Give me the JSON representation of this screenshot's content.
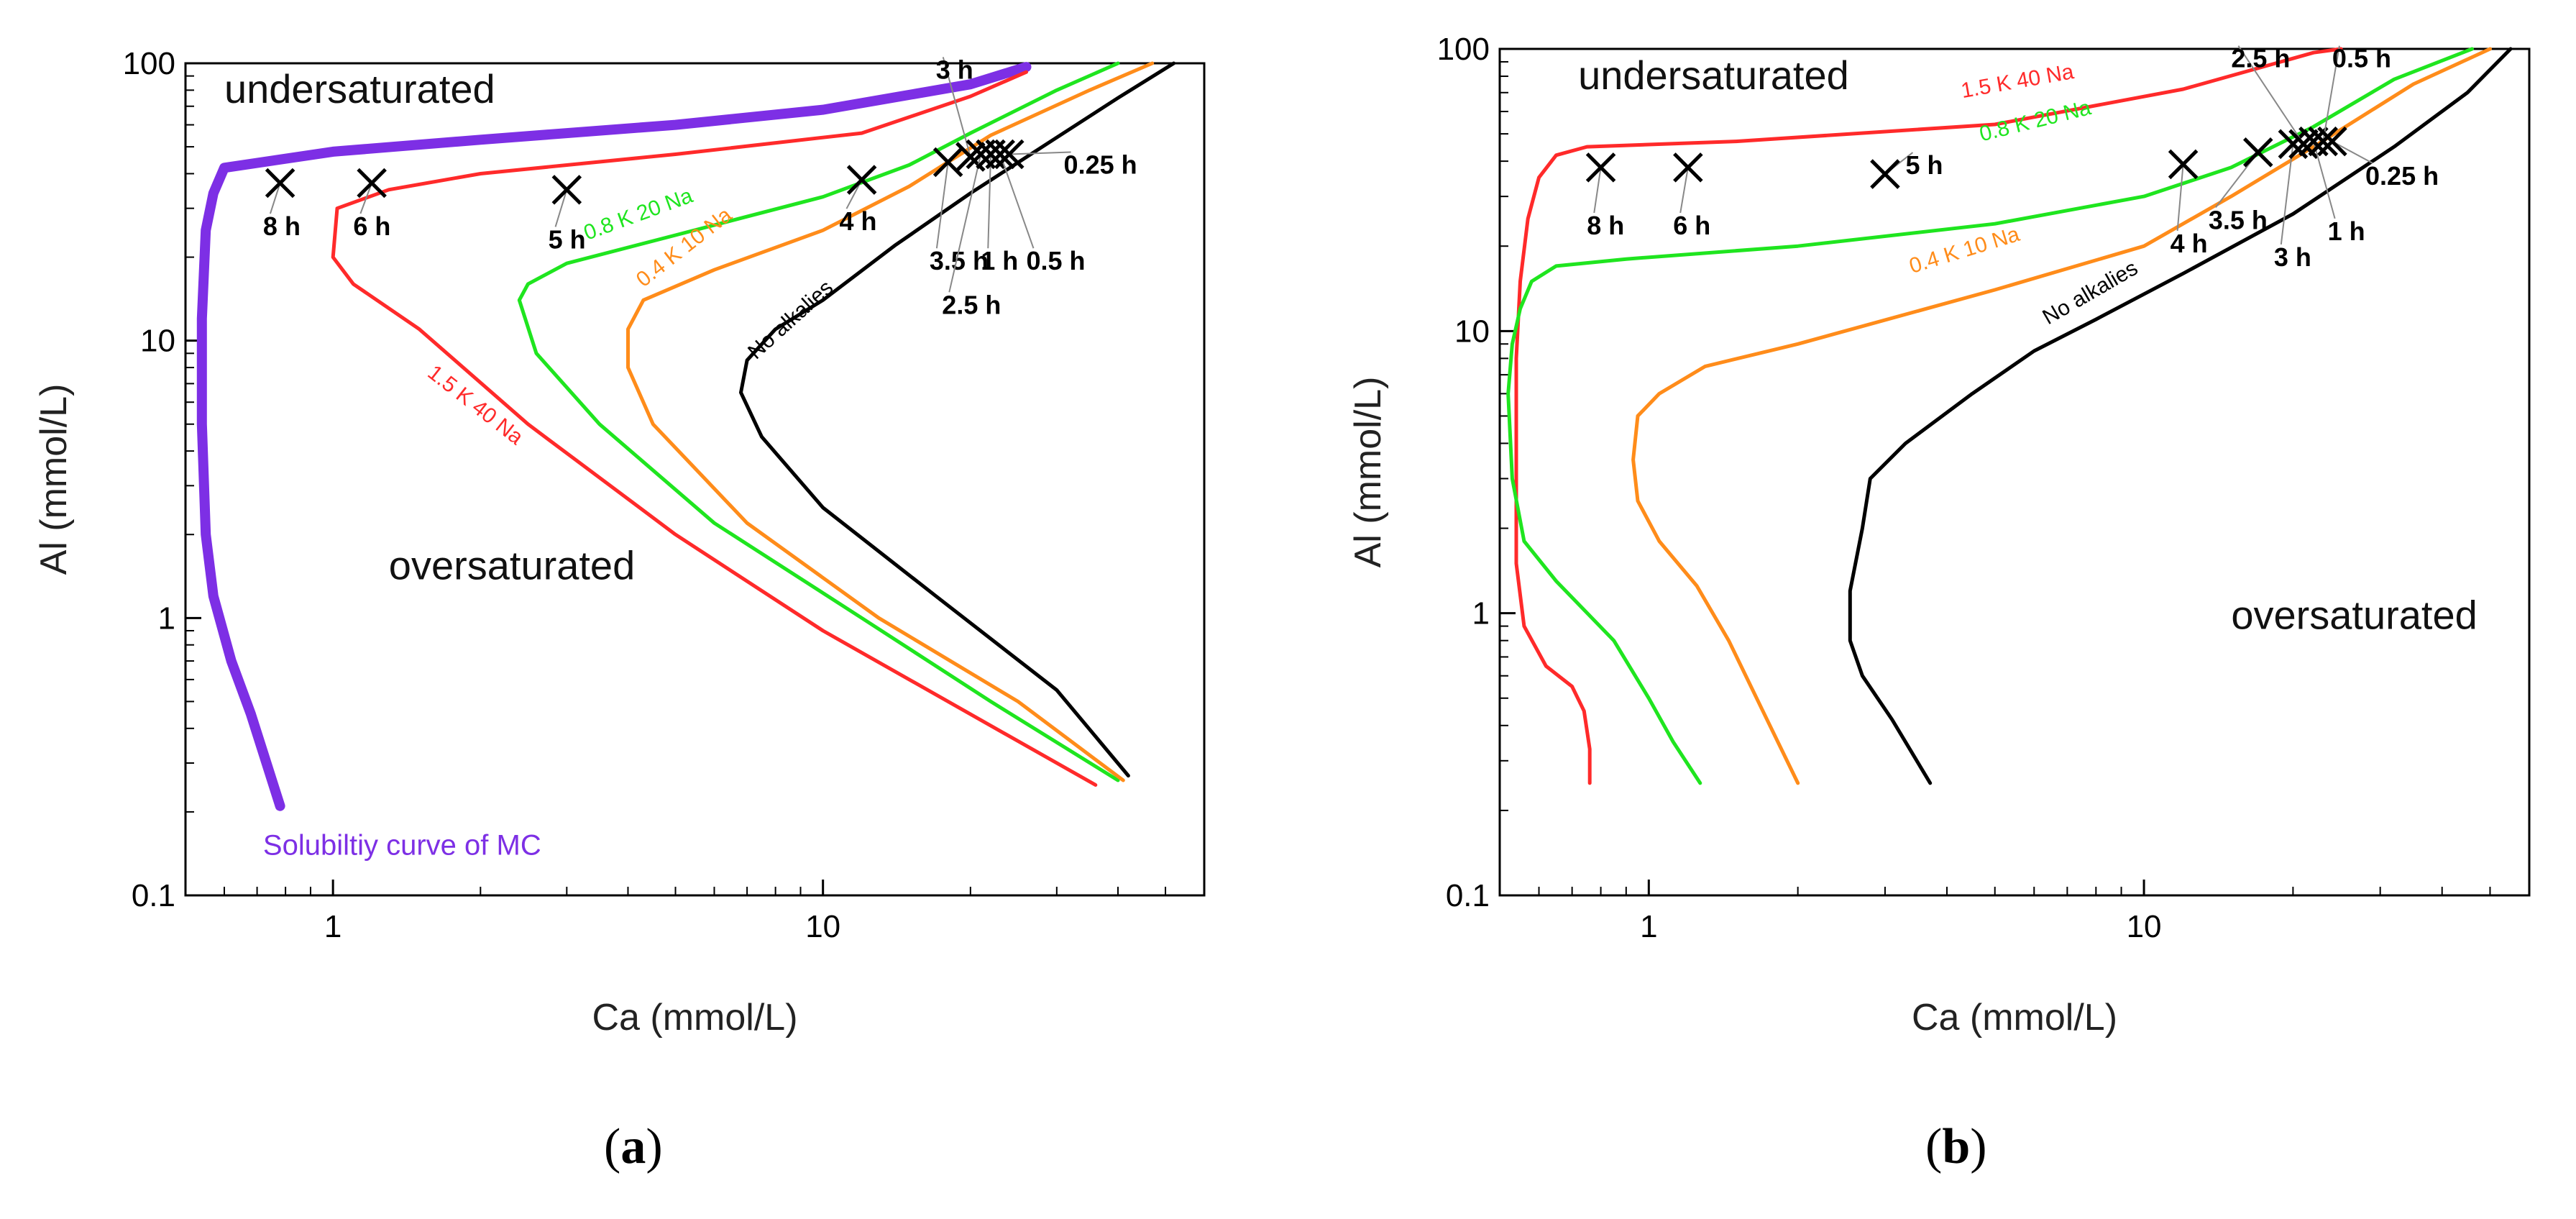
{
  "chart_data": [
    {
      "id": "a",
      "type": "line",
      "panel_label": "a",
      "xlabel": "Ca (mmol/L)",
      "ylabel": "Al (mmol/L)",
      "xscale": "log",
      "yscale": "log",
      "xlim": [
        0.5,
        60
      ],
      "ylim": [
        0.1,
        100
      ],
      "x_ticks": [
        {
          "v": 1,
          "label": "1"
        },
        {
          "v": 10,
          "label": "10"
        }
      ],
      "y_ticks": [
        {
          "v": 0.1,
          "label": "0.1"
        },
        {
          "v": 1,
          "label": "1"
        },
        {
          "v": 10,
          "label": "10"
        },
        {
          "v": 100,
          "label": "100"
        }
      ],
      "region_labels": [
        {
          "text": "undersaturated",
          "x": 0.6,
          "y": 72
        },
        {
          "text": "oversaturated",
          "x": 1.3,
          "y": 1.38
        }
      ],
      "series": [
        {
          "name": "Solubiltiy curve of MC",
          "color": "#7d2fe5",
          "width": 14,
          "points": [
            [
              0.78,
              0.21
            ],
            [
              0.68,
              0.45
            ],
            [
              0.62,
              0.7
            ],
            [
              0.57,
              1.2
            ],
            [
              0.55,
              2
            ],
            [
              0.54,
              5
            ],
            [
              0.54,
              12
            ],
            [
              0.55,
              25
            ],
            [
              0.57,
              34
            ],
            [
              0.6,
              42
            ],
            [
              1.0,
              48
            ],
            [
              2,
              53
            ],
            [
              5,
              60
            ],
            [
              10,
              68
            ],
            [
              20,
              84
            ],
            [
              26,
              97
            ]
          ]
        },
        {
          "name": "1.5 K 40 Na",
          "color": "#ff2a2a",
          "width": 5,
          "points": [
            [
              36,
              0.25
            ],
            [
              20,
              0.45
            ],
            [
              10,
              0.9
            ],
            [
              5,
              2
            ],
            [
              2.5,
              5
            ],
            [
              1.5,
              11
            ],
            [
              1.1,
              16
            ],
            [
              1.0,
              20
            ],
            [
              1.02,
              30
            ],
            [
              1.3,
              35
            ],
            [
              2,
              40
            ],
            [
              5,
              47
            ],
            [
              12,
              56
            ],
            [
              20,
              76
            ],
            [
              26,
              93
            ]
          ]
        },
        {
          "name": "0.8 K 20 Na",
          "color": "#1fe51f",
          "width": 5,
          "points": [
            [
              40,
              0.26
            ],
            [
              22,
              0.5
            ],
            [
              12,
              1
            ],
            [
              6,
              2.2
            ],
            [
              3.5,
              5
            ],
            [
              2.6,
              9
            ],
            [
              2.4,
              14
            ],
            [
              2.5,
              16
            ],
            [
              3,
              19
            ],
            [
              5,
              24
            ],
            [
              10,
              33
            ],
            [
              15,
              43
            ],
            [
              20,
              56
            ],
            [
              30,
              80
            ],
            [
              40,
              100
            ]
          ]
        },
        {
          "name": "0.4 K 10 Na",
          "color": "#ff8c1a",
          "width": 5,
          "points": [
            [
              41,
              0.26
            ],
            [
              25,
              0.5
            ],
            [
              13,
              1
            ],
            [
              7,
              2.2
            ],
            [
              4.5,
              5
            ],
            [
              4.0,
              8
            ],
            [
              4.0,
              11
            ],
            [
              4.3,
              14
            ],
            [
              6,
              18
            ],
            [
              10,
              25
            ],
            [
              15,
              36
            ],
            [
              22,
              55
            ],
            [
              35,
              80
            ],
            [
              47,
              100
            ]
          ]
        },
        {
          "name": "No alkalies",
          "color": "#000000",
          "width": 5,
          "points": [
            [
              42,
              0.27
            ],
            [
              30,
              0.55
            ],
            [
              17,
              1.2
            ],
            [
              10,
              2.5
            ],
            [
              7.5,
              4.5
            ],
            [
              6.8,
              6.5
            ],
            [
              7,
              8.5
            ],
            [
              8,
              11
            ],
            [
              10,
              14
            ],
            [
              14,
              22
            ],
            [
              20,
              34
            ],
            [
              30,
              54
            ],
            [
              40,
              75
            ],
            [
              52,
              100
            ]
          ]
        }
      ],
      "series_labels": [
        {
          "series": "1.5 K 40 Na",
          "text": "1.5 K 40 Na",
          "x": 1.55,
          "y": 7.5,
          "rotate": 38
        },
        {
          "series": "0.8 K 20 Na",
          "text": "0.8 K 20 Na",
          "x": 3.3,
          "y": 23,
          "rotate": -20
        },
        {
          "series": "0.4 K 10 Na",
          "text": "0.4 K 10 Na",
          "x": 4.3,
          "y": 15.5,
          "rotate": -38
        },
        {
          "series": "No alkalies",
          "text": "No alkalies",
          "x": 7.3,
          "y": 8.5,
          "rotate": -42
        },
        {
          "series": "Solubiltiy curve of MC",
          "text": "Solubiltiy curve of MC",
          "x": 0.72,
          "y": 0.14,
          "rotate": 0
        }
      ],
      "sample_points": [
        {
          "label": "8 h",
          "x": 0.78,
          "y": 37,
          "lx": 0.72,
          "ly": 24
        },
        {
          "label": "6 h",
          "x": 1.2,
          "y": 37,
          "lx": 1.1,
          "ly": 24
        },
        {
          "label": "5 h",
          "x": 3.0,
          "y": 35,
          "lx": 2.75,
          "ly": 21.5
        },
        {
          "label": "4 h",
          "x": 12,
          "y": 38,
          "lx": 10.8,
          "ly": 25
        },
        {
          "label": "3.5 h",
          "x": 18,
          "y": 44,
          "lx": 16.5,
          "ly": 18
        },
        {
          "label": "3 h",
          "x": 20,
          "y": 46,
          "lx": 17,
          "ly": 88
        },
        {
          "label": "2.5 h",
          "x": 21,
          "y": 47,
          "lx": 17.5,
          "ly": 12.5
        },
        {
          "label": "1 h",
          "x": 22,
          "y": 47,
          "lx": 21,
          "ly": 18
        },
        {
          "label": "0.5 h",
          "x": 23,
          "y": 47,
          "lx": 26,
          "ly": 18
        },
        {
          "label": "0.25 h",
          "x": 24,
          "y": 47,
          "lx": 31,
          "ly": 40
        }
      ]
    },
    {
      "id": "b",
      "type": "line",
      "panel_label": "b",
      "xlabel": "Ca (mmol/L)",
      "ylabel": "Al (mmol/L)",
      "xscale": "log",
      "yscale": "log",
      "xlim": [
        0.5,
        60
      ],
      "ylim": [
        0.1,
        100
      ],
      "x_ticks": [
        {
          "v": 1,
          "label": "1"
        },
        {
          "v": 10,
          "label": "10"
        }
      ],
      "y_ticks": [
        {
          "v": 0.1,
          "label": "0.1"
        },
        {
          "v": 1,
          "label": "1"
        },
        {
          "v": 10,
          "label": "10"
        },
        {
          "v": 100,
          "label": "100"
        }
      ],
      "region_labels": [
        {
          "text": "undersaturated",
          "x": 0.72,
          "y": 72
        },
        {
          "text": "oversaturated",
          "x": 15,
          "y": 0.88
        }
      ],
      "series": [
        {
          "name": "1.5 K 40 Na",
          "color": "#ff2a2a",
          "width": 5,
          "points": [
            [
              0.76,
              0.25
            ],
            [
              0.76,
              0.33
            ],
            [
              0.74,
              0.45
            ],
            [
              0.7,
              0.55
            ],
            [
              0.62,
              0.65
            ],
            [
              0.56,
              0.9
            ],
            [
              0.54,
              1.5
            ],
            [
              0.54,
              3
            ],
            [
              0.54,
              8
            ],
            [
              0.55,
              15
            ],
            [
              0.57,
              25
            ],
            [
              0.6,
              35
            ],
            [
              0.65,
              42
            ],
            [
              0.75,
              45
            ],
            [
              1.5,
              47
            ],
            [
              5,
              54
            ],
            [
              12,
              72
            ],
            [
              22,
              97
            ],
            [
              25,
              100
            ]
          ]
        },
        {
          "name": "0.8 K 20 Na",
          "color": "#1fe51f",
          "width": 5,
          "points": [
            [
              1.27,
              0.25
            ],
            [
              1.12,
              0.35
            ],
            [
              1.0,
              0.5
            ],
            [
              0.85,
              0.8
            ],
            [
              0.65,
              1.3
            ],
            [
              0.56,
              1.8
            ],
            [
              0.53,
              3
            ],
            [
              0.52,
              6
            ],
            [
              0.53,
              9
            ],
            [
              0.55,
              12
            ],
            [
              0.58,
              15
            ],
            [
              0.65,
              17
            ],
            [
              0.9,
              18
            ],
            [
              2,
              20
            ],
            [
              5,
              24
            ],
            [
              10,
              30
            ],
            [
              15,
              38
            ],
            [
              22,
              53
            ],
            [
              32,
              78
            ],
            [
              46,
              100
            ]
          ]
        },
        {
          "name": "0.4 K 10 Na",
          "color": "#ff8c1a",
          "width": 5,
          "points": [
            [
              2.0,
              0.25
            ],
            [
              1.7,
              0.45
            ],
            [
              1.45,
              0.8
            ],
            [
              1.25,
              1.25
            ],
            [
              1.05,
              1.8
            ],
            [
              0.95,
              2.5
            ],
            [
              0.93,
              3.5
            ],
            [
              0.95,
              5
            ],
            [
              1.05,
              6
            ],
            [
              1.3,
              7.5
            ],
            [
              2,
              9
            ],
            [
              5,
              14
            ],
            [
              10,
              20
            ],
            [
              15,
              30
            ],
            [
              22,
              45
            ],
            [
              35,
              75
            ],
            [
              50,
              100
            ]
          ]
        },
        {
          "name": "No alkalies",
          "color": "#000000",
          "width": 5,
          "points": [
            [
              3.7,
              0.25
            ],
            [
              3.1,
              0.42
            ],
            [
              2.7,
              0.6
            ],
            [
              2.55,
              0.8
            ],
            [
              2.55,
              1.2
            ],
            [
              2.7,
              2
            ],
            [
              2.8,
              3
            ],
            [
              3.3,
              4
            ],
            [
              4.5,
              6
            ],
            [
              6,
              8.5
            ],
            [
              8,
              11
            ],
            [
              12,
              16
            ],
            [
              20,
              26
            ],
            [
              32,
              45
            ],
            [
              45,
              70
            ],
            [
              55,
              100
            ]
          ]
        }
      ],
      "series_labels": [
        {
          "series": "1.5 K 40 Na",
          "text": "1.5 K 40 Na",
          "x": 4.3,
          "y": 67,
          "rotate": -10
        },
        {
          "series": "0.8 K 20 Na",
          "text": "0.8 K 20 Na",
          "x": 4.7,
          "y": 47,
          "rotate": -14
        },
        {
          "series": "0.4 K 10 Na",
          "text": "0.4 K 10 Na",
          "x": 3.4,
          "y": 16,
          "rotate": -17
        },
        {
          "series": "No alkalies",
          "text": "No alkalies",
          "x": 6.4,
          "y": 10.5,
          "rotate": -30
        }
      ],
      "sample_points": [
        {
          "label": "8 h",
          "x": 0.8,
          "y": 38,
          "lx": 0.75,
          "ly": 22
        },
        {
          "label": "6 h",
          "x": 1.2,
          "y": 38,
          "lx": 1.12,
          "ly": 22
        },
        {
          "label": "5 h",
          "x": 3.0,
          "y": 36,
          "lx": 3.3,
          "ly": 36
        },
        {
          "label": "4 h",
          "x": 12,
          "y": 39,
          "lx": 11.3,
          "ly": 19
        },
        {
          "label": "3.5 h",
          "x": 17,
          "y": 43,
          "lx": 13.5,
          "ly": 23
        },
        {
          "label": "3 h",
          "x": 20,
          "y": 46,
          "lx": 18.3,
          "ly": 17
        },
        {
          "label": "2.5 h",
          "x": 21,
          "y": 46,
          "lx": 15,
          "ly": 86
        },
        {
          "label": "1 h",
          "x": 22,
          "y": 47,
          "lx": 23.5,
          "ly": 21
        },
        {
          "label": "0.5 h",
          "x": 23,
          "y": 47,
          "lx": 24,
          "ly": 86
        },
        {
          "label": "0.25 h",
          "x": 24,
          "y": 47,
          "lx": 28,
          "ly": 33
        }
      ]
    }
  ],
  "captions": {
    "a": "a",
    "b": "b"
  }
}
